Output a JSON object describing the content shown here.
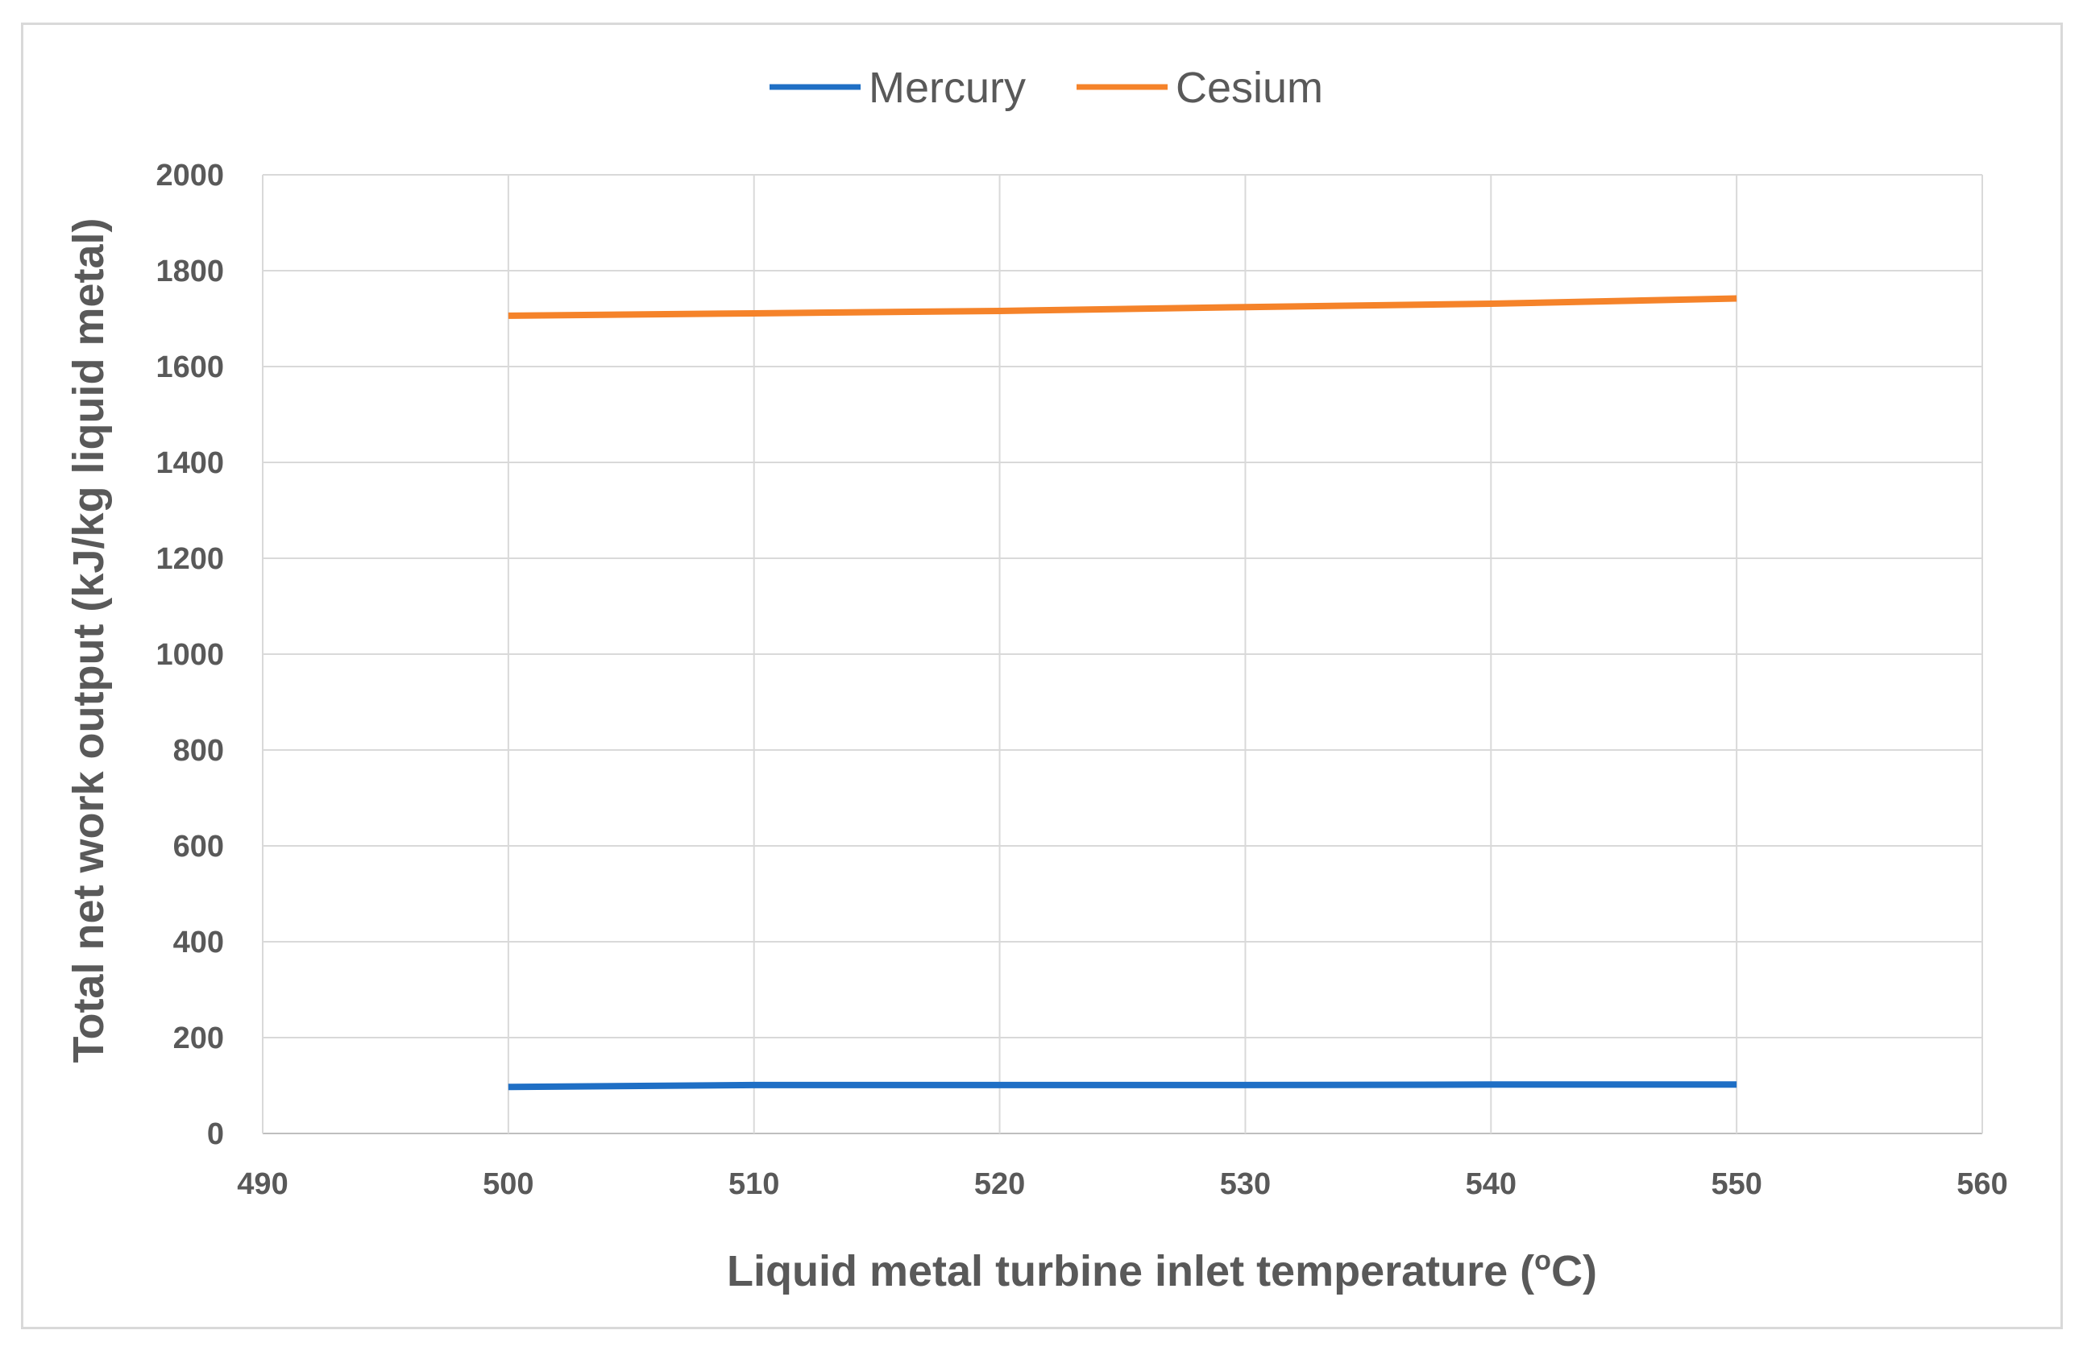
{
  "chart_data": {
    "type": "line",
    "title": "",
    "xlabel": "Liquid metal turbine inlet temperature (",
    "xlabel_sup": "o",
    "xlabel_end": "C)",
    "ylabel": "Total net work output (kJ/kg liquid metal)",
    "xlim": [
      490,
      560
    ],
    "ylim": [
      0,
      2000
    ],
    "x_ticks": [
      490,
      500,
      510,
      520,
      530,
      540,
      550,
      560
    ],
    "y_ticks": [
      0,
      200,
      400,
      600,
      800,
      1000,
      1200,
      1400,
      1600,
      1800,
      2000
    ],
    "grid": true,
    "legend_position": "top",
    "series": [
      {
        "name": "Mercury",
        "color": "#1f6fc5",
        "x": [
          500,
          510,
          520,
          530,
          540,
          550
        ],
        "y": [
          97,
          101,
          101,
          101,
          102,
          102
        ]
      },
      {
        "name": "Cesium",
        "color": "#f5832a",
        "x": [
          500,
          510,
          520,
          530,
          540,
          550
        ],
        "y": [
          1706,
          1711,
          1716,
          1724,
          1731,
          1742
        ]
      }
    ]
  }
}
